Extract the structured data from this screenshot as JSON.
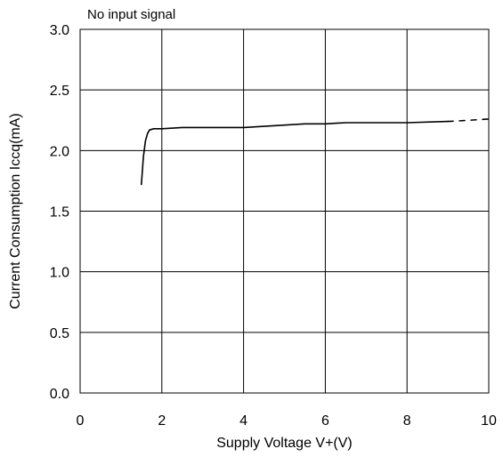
{
  "chart_data": {
    "type": "line",
    "annotation": "No input signal",
    "xlabel": "Supply Voltage V+(V)",
    "ylabel": "Current Consumption Iccq(mA)",
    "xlim": [
      0,
      10
    ],
    "ylim": [
      0,
      3.0
    ],
    "x_ticks": [
      "0",
      "2",
      "4",
      "6",
      "8",
      "10"
    ],
    "y_ticks": [
      "0.0",
      "0.5",
      "1.0",
      "1.5",
      "2.0",
      "2.5",
      "3.0"
    ],
    "grid": true,
    "line_color": "#000000",
    "series": [
      {
        "style": "solid",
        "x": [
          1.5,
          1.55,
          1.6,
          1.65,
          1.7,
          1.8,
          2.0,
          2.5,
          3.0,
          4.0,
          4.5,
          5.0,
          5.5,
          6.0,
          6.5,
          7.0,
          8.0,
          9.0
        ],
        "y": [
          1.72,
          1.95,
          2.08,
          2.14,
          2.17,
          2.18,
          2.18,
          2.19,
          2.19,
          2.19,
          2.2,
          2.21,
          2.22,
          2.22,
          2.23,
          2.23,
          2.23,
          2.24
        ]
      },
      {
        "style": "dashed",
        "x": [
          9.0,
          9.5,
          10.0
        ],
        "y": [
          2.24,
          2.25,
          2.26
        ]
      }
    ]
  }
}
